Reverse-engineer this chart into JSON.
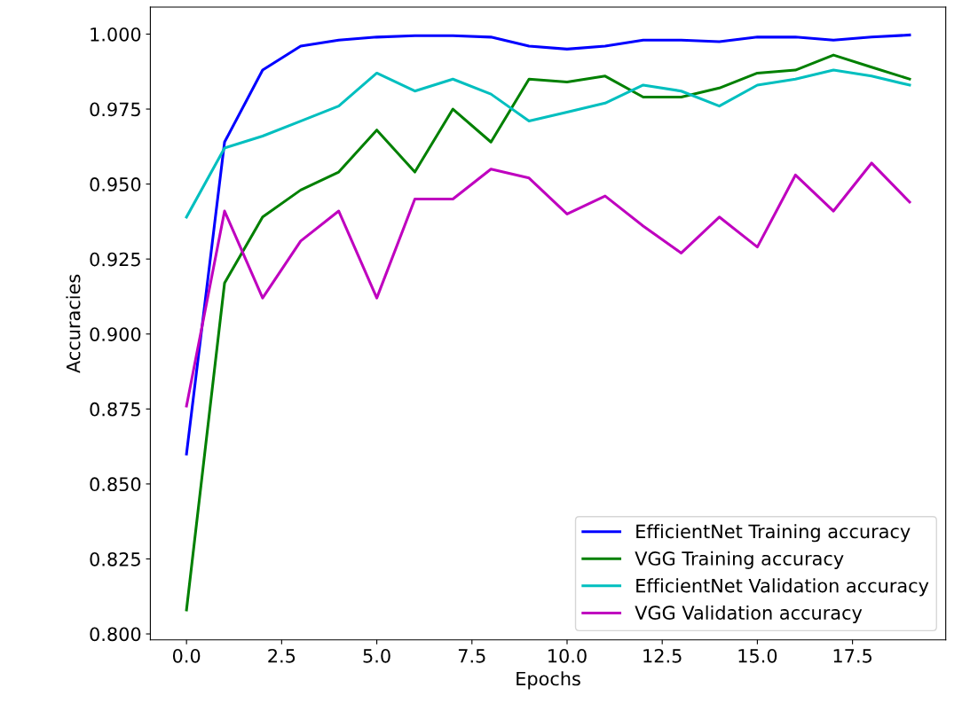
{
  "chart_data": {
    "type": "line",
    "xlabel": "Epochs",
    "ylabel": "Accuracies",
    "x": [
      0,
      1,
      2,
      3,
      4,
      5,
      6,
      7,
      8,
      9,
      10,
      11,
      12,
      13,
      14,
      15,
      16,
      17,
      18,
      19
    ],
    "series": [
      {
        "name": "EfficientNet Training accuracy",
        "color": "#0000ff",
        "values": [
          0.86,
          0.964,
          0.988,
          0.996,
          0.998,
          0.999,
          0.9995,
          0.9995,
          0.999,
          0.996,
          0.995,
          0.996,
          0.998,
          0.998,
          0.9975,
          0.999,
          0.999,
          0.998,
          0.999,
          0.9997
        ]
      },
      {
        "name": "VGG Training accuracy",
        "color": "#008000",
        "values": [
          0.808,
          0.917,
          0.939,
          0.948,
          0.954,
          0.968,
          0.954,
          0.975,
          0.964,
          0.985,
          0.984,
          0.986,
          0.979,
          0.979,
          0.982,
          0.987,
          0.988,
          0.993,
          0.989,
          0.985
        ]
      },
      {
        "name": "EfficientNet Validation accuracy",
        "color": "#00bfbf",
        "values": [
          0.939,
          0.962,
          0.966,
          0.971,
          0.976,
          0.987,
          0.981,
          0.985,
          0.98,
          0.971,
          0.974,
          0.977,
          0.983,
          0.981,
          0.976,
          0.983,
          0.985,
          0.988,
          0.986,
          0.983
        ]
      },
      {
        "name": "VGG Validation accuracy",
        "color": "#bf00bf",
        "values": [
          0.876,
          0.941,
          0.912,
          0.931,
          0.941,
          0.912,
          0.945,
          0.945,
          0.955,
          0.952,
          0.94,
          0.946,
          0.936,
          0.927,
          0.939,
          0.929,
          0.953,
          0.941,
          0.957,
          0.944
        ]
      }
    ],
    "xlim": [
      -0.95,
      19.95
    ],
    "xticks": [
      {
        "value": 0,
        "label": "0.0"
      },
      {
        "value": 2.5,
        "label": "2.5"
      },
      {
        "value": 5,
        "label": "5.0"
      },
      {
        "value": 7.5,
        "label": "7.5"
      },
      {
        "value": 10,
        "label": "10.0"
      },
      {
        "value": 12.5,
        "label": "12.5"
      },
      {
        "value": 15,
        "label": "15.0"
      },
      {
        "value": 17.5,
        "label": "17.5"
      }
    ],
    "ylim": [
      0.798,
      1.009
    ],
    "yticks": [
      {
        "value": 0.8,
        "label": "0.800"
      },
      {
        "value": 0.825,
        "label": "0.825"
      },
      {
        "value": 0.85,
        "label": "0.850"
      },
      {
        "value": 0.875,
        "label": "0.875"
      },
      {
        "value": 0.9,
        "label": "0.900"
      },
      {
        "value": 0.925,
        "label": "0.925"
      },
      {
        "value": 0.95,
        "label": "0.950"
      },
      {
        "value": 0.975,
        "label": "0.975"
      },
      {
        "value": 1.0,
        "label": "1.000"
      }
    ],
    "legend": "lower right",
    "grid": false,
    "marker": "none",
    "line_style": "solid"
  }
}
